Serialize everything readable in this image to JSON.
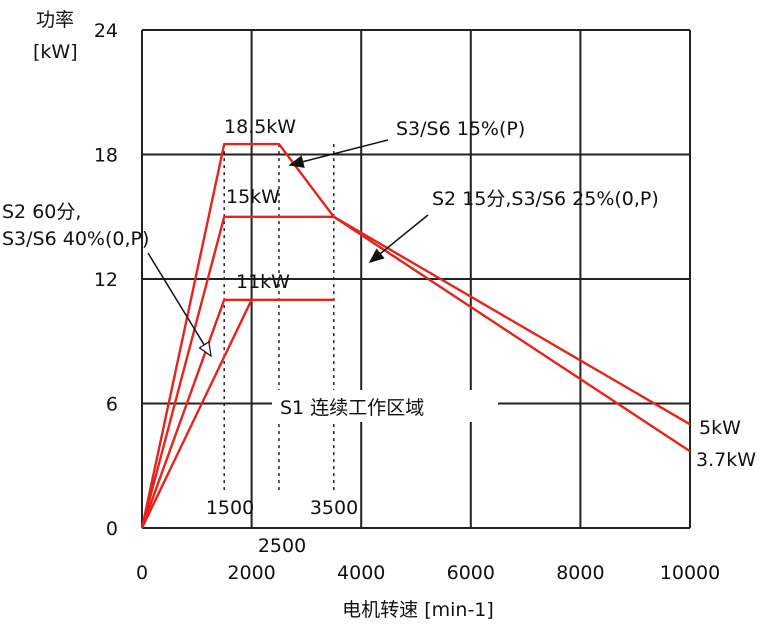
{
  "chart_data": {
    "type": "line",
    "ylabel_line1": "功率",
    "ylabel_line2": "[kW]",
    "xlabel": "电机转速 [min-1]",
    "xlim": [
      0,
      10000
    ],
    "ylim": [
      0,
      24
    ],
    "x_ticks": [
      0,
      2000,
      4000,
      6000,
      8000,
      10000
    ],
    "y_ticks": [
      0,
      6,
      12,
      18,
      24
    ],
    "grid": true,
    "line_color": "#e8231c",
    "series": [
      {
        "x": [
          0,
          1500,
          2500,
          3500,
          10000
        ],
        "y": [
          0,
          18.5,
          18.5,
          15,
          5
        ]
      },
      {
        "x": [
          0,
          1500,
          3500,
          10000
        ],
        "y": [
          0,
          15,
          15,
          3.7
        ]
      },
      {
        "x": [
          0,
          1500,
          2000,
          3500
        ],
        "y": [
          0,
          11,
          11,
          11
        ]
      },
      {
        "x": [
          0,
          2000
        ],
        "y": [
          0,
          11
        ]
      }
    ],
    "vertical_markers": [
      {
        "x": 1500,
        "label": "1500"
      },
      {
        "x": 2500,
        "label": "2500"
      },
      {
        "x": 3500,
        "label": "3500"
      }
    ],
    "annotations": {
      "p185": "18.5kW",
      "p15": "15kW",
      "p11": "11kW",
      "s3s6_15": "S3/S6 15%(P)",
      "s2_15": "S2 15分,S3/S6 25%(0,P)",
      "s2_60_line1": "S2 60分,",
      "s2_60_line2": "S3/S6 40%(0,P)",
      "s1": "S1 连续工作区域",
      "end5": "5kW",
      "end37": "3.7kW"
    }
  }
}
